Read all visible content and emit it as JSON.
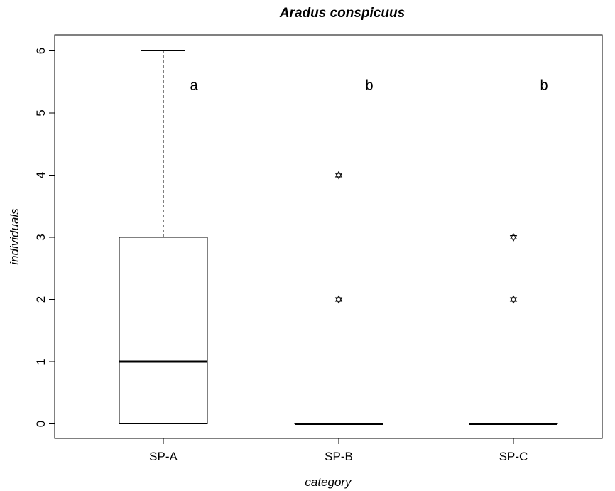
{
  "chart_data": {
    "type": "box",
    "title": "Aradus conspicuus",
    "xlabel": "category",
    "ylabel": "individuals",
    "ylim": [
      -0.25,
      6.25
    ],
    "yticks": [
      0,
      1,
      2,
      3,
      4,
      5,
      6
    ],
    "grid": false,
    "categories": [
      "SP-A",
      "SP-B",
      "SP-C"
    ],
    "boxes": [
      {
        "category": "SP-A",
        "whisker_low": 0,
        "q1": 0,
        "median": 1,
        "q3": 3,
        "whisker_high": 6,
        "outliers": [],
        "annotation": "a"
      },
      {
        "category": "SP-B",
        "whisker_low": 0,
        "q1": 0,
        "median": 0,
        "q3": 0,
        "whisker_high": 0,
        "outliers": [
          2,
          4
        ],
        "annotation": "b"
      },
      {
        "category": "SP-C",
        "whisker_low": 0,
        "q1": 0,
        "median": 0,
        "q3": 0,
        "whisker_high": 0,
        "outliers": [
          2,
          3
        ],
        "annotation": "b"
      }
    ],
    "annotation_y": 5.45
  }
}
